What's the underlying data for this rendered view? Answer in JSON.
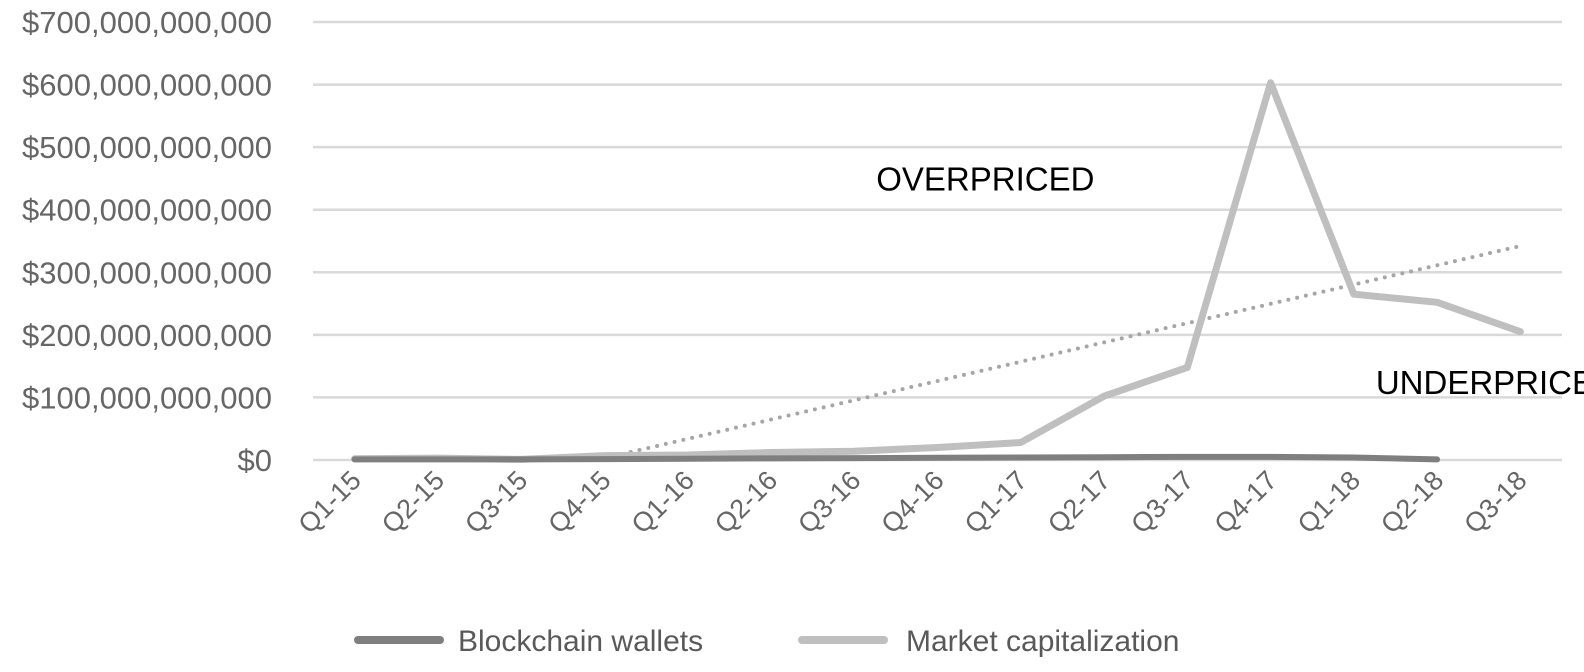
{
  "chart_data": {
    "type": "line",
    "title": "",
    "xlabel": "",
    "ylabel": "",
    "categories": [
      "Q1-15",
      "Q2-15",
      "Q3-15",
      "Q4-15",
      "Q1-16",
      "Q2-16",
      "Q3-16",
      "Q4-16",
      "Q1-17",
      "Q2-17",
      "Q3-17",
      "Q4-17",
      "Q1-18",
      "Q2-18",
      "Q3-18"
    ],
    "y_ticks": [
      0,
      100000000000,
      200000000000,
      300000000000,
      400000000000,
      500000000000,
      600000000000,
      700000000000
    ],
    "y_tick_labels": [
      "$0",
      "$100,000,000,000",
      "$200,000,000,000",
      "$300,000,000,000",
      "$400,000,000,000",
      "$500,000,000,000",
      "$600,000,000,000",
      "$700,000,000,000"
    ],
    "ylim": [
      0,
      700000000000
    ],
    "grid": true,
    "legend_position": "bottom",
    "series": [
      {
        "name": "Blockchain wallets",
        "color": "#7f7f7f",
        "values": [
          1000000000,
          1000000000,
          1000000000,
          1500000000,
          2000000000,
          2500000000,
          3000000000,
          3500000000,
          4000000000,
          4500000000,
          5000000000,
          5000000000,
          4000000000,
          1000000000,
          null
        ]
      },
      {
        "name": "Market capitalization",
        "color": "#bfbfbf",
        "values": [
          2000000000,
          3000000000,
          1000000000,
          7000000000,
          8000000000,
          12000000000,
          14000000000,
          20000000000,
          28000000000,
          102000000000,
          148000000000,
          603000000000,
          265000000000,
          252000000000,
          205000000000
        ]
      }
    ],
    "trendline": {
      "color": "#a6a6a6",
      "style": "dotted",
      "x_start": "Q4-15",
      "x_end": "Q3-18",
      "y_start": 3000000000,
      "y_end": 342000000000
    },
    "annotations": [
      {
        "text": "OVERPRICED",
        "x": "Q3-16",
        "y": 450000000000
      },
      {
        "text": "UNDERPRICED",
        "x": "Q1-18",
        "y": 125000000000
      }
    ]
  }
}
